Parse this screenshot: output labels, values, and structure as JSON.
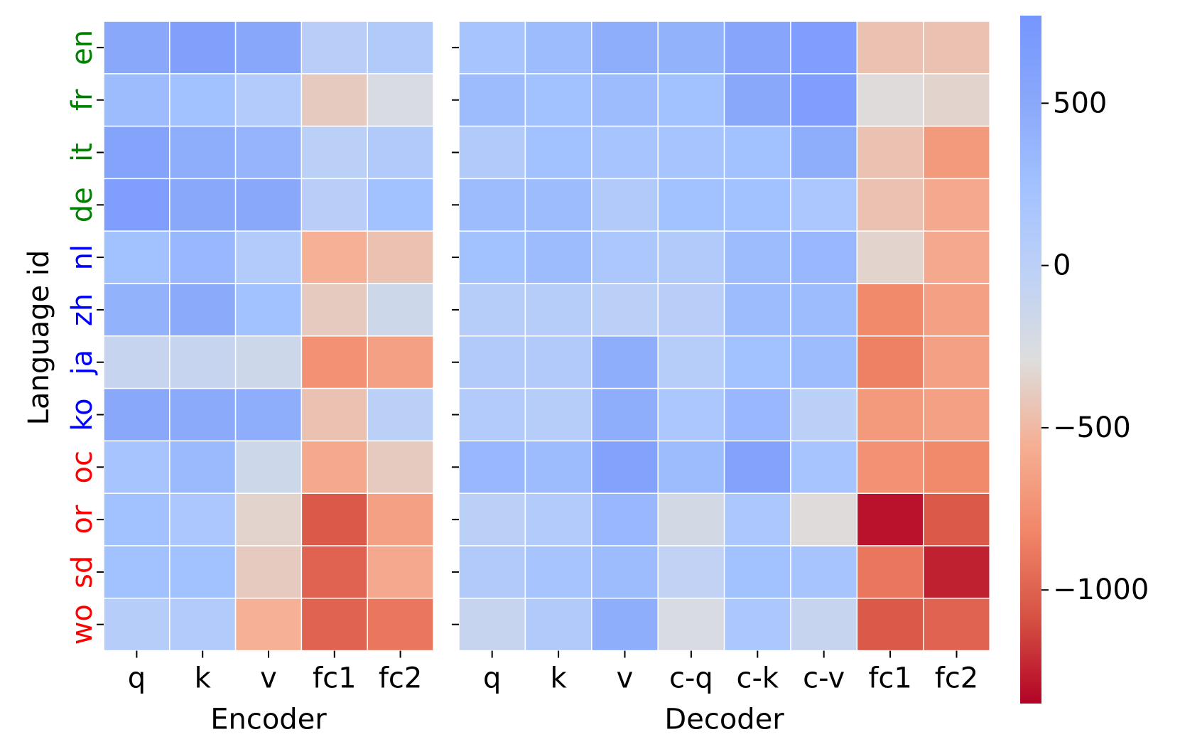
{
  "chart_data": {
    "type": "heatmap",
    "ylabel": "Language id",
    "languages": [
      {
        "code": "en",
        "color": "#008000"
      },
      {
        "code": "fr",
        "color": "#008000"
      },
      {
        "code": "it",
        "color": "#008000"
      },
      {
        "code": "de",
        "color": "#008000"
      },
      {
        "code": "nl",
        "color": "#0000ff"
      },
      {
        "code": "zh",
        "color": "#0000ff"
      },
      {
        "code": "ja",
        "color": "#0000ff"
      },
      {
        "code": "ko",
        "color": "#0000ff"
      },
      {
        "code": "oc",
        "color": "#ff0000"
      },
      {
        "code": "or",
        "color": "#ff0000"
      },
      {
        "code": "sd",
        "color": "#ff0000"
      },
      {
        "code": "wo",
        "color": "#ff0000"
      }
    ],
    "panels": [
      {
        "name": "encoder",
        "xlabel": "Encoder",
        "columns": [
          "q",
          "k",
          "v",
          "fc1",
          "fc2"
        ],
        "values": [
          [
            500,
            620,
            520,
            30,
            100
          ],
          [
            300,
            250,
            80,
            -400,
            -250
          ],
          [
            580,
            450,
            380,
            0,
            100
          ],
          [
            650,
            500,
            500,
            30,
            250
          ],
          [
            250,
            350,
            80,
            -550,
            -450
          ],
          [
            400,
            480,
            250,
            -400,
            -150
          ],
          [
            -100,
            -100,
            -150,
            -750,
            -650
          ],
          [
            500,
            480,
            450,
            -450,
            0
          ],
          [
            200,
            320,
            -150,
            -600,
            -400
          ],
          [
            250,
            150,
            -350,
            -1050,
            -650
          ],
          [
            250,
            250,
            -400,
            -1000,
            -600
          ],
          [
            50,
            80,
            -550,
            -1000,
            -900
          ]
        ]
      },
      {
        "name": "decoder",
        "xlabel": "Decoder",
        "columns": [
          "q",
          "k",
          "v",
          "c-q",
          "c-k",
          "c-v",
          "fc1",
          "fc2"
        ],
        "values": [
          [
            200,
            300,
            450,
            400,
            550,
            650,
            -450,
            -450
          ],
          [
            300,
            250,
            300,
            250,
            500,
            650,
            -300,
            -350
          ],
          [
            100,
            250,
            200,
            200,
            250,
            450,
            -450,
            -700
          ],
          [
            300,
            300,
            100,
            250,
            250,
            150,
            -450,
            -600
          ],
          [
            250,
            300,
            150,
            100,
            300,
            350,
            -350,
            -600
          ],
          [
            50,
            50,
            0,
            30,
            300,
            300,
            -800,
            -650
          ],
          [
            100,
            100,
            450,
            50,
            250,
            300,
            -850,
            -650
          ],
          [
            80,
            50,
            450,
            150,
            350,
            0,
            -700,
            -650
          ],
          [
            350,
            300,
            600,
            300,
            600,
            200,
            -750,
            -800
          ],
          [
            0,
            80,
            350,
            -200,
            150,
            -300,
            -1300,
            -1050
          ],
          [
            100,
            200,
            300,
            -50,
            250,
            200,
            -900,
            -1250
          ],
          [
            -100,
            100,
            450,
            -250,
            150,
            -100,
            -1050,
            -1000
          ]
        ]
      }
    ],
    "colorbar": {
      "colormap": "coolwarm (reversed: red = negative, blue = positive)",
      "range": [
        -1350,
        770
      ],
      "ticks": [
        500,
        0,
        -500,
        -1000
      ],
      "tick_labels": [
        "500",
        "0",
        "−500",
        "−1000"
      ]
    }
  }
}
